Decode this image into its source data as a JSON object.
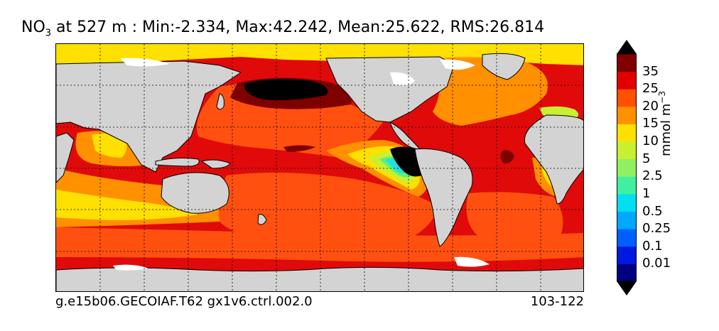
{
  "title": {
    "variable": "NO",
    "subscript": "3",
    "rest": " at 527 m : Min:-2.334, Max:42.242, Mean:25.622, RMS:26.814"
  },
  "footer": {
    "run_name": "g.e15b06.GECOIAF.T62 gx1v6.ctrl.002.0",
    "years": "103-122"
  },
  "colorbar": {
    "unit_base": "mmol m",
    "unit_exp": "−3",
    "labels": [
      "35",
      "25",
      "20",
      "15",
      "10",
      "5",
      "2.5",
      "1",
      "0.5",
      "0.25",
      "0.1",
      "0.01"
    ],
    "colors": [
      "#000080",
      "#0018e0",
      "#0060ff",
      "#00a8ff",
      "#00e0f0",
      "#40f0a0",
      "#90f060",
      "#c8f030",
      "#ffe000",
      "#ff9000",
      "#ff5000",
      "#e00000",
      "#800000"
    ]
  },
  "map": {
    "colors": {
      "land": "#d3d3d3",
      "background_red": "#e00a0a",
      "orange_red": "#ff5010",
      "orange": "#ff9000",
      "yellow": "#ffe000",
      "yellow_green": "#c8f030",
      "green": "#60f080",
      "cyan": "#20e0e0",
      "black": "#000000",
      "dark_red": "#800000",
      "ice_white": "#ffffff"
    }
  }
}
